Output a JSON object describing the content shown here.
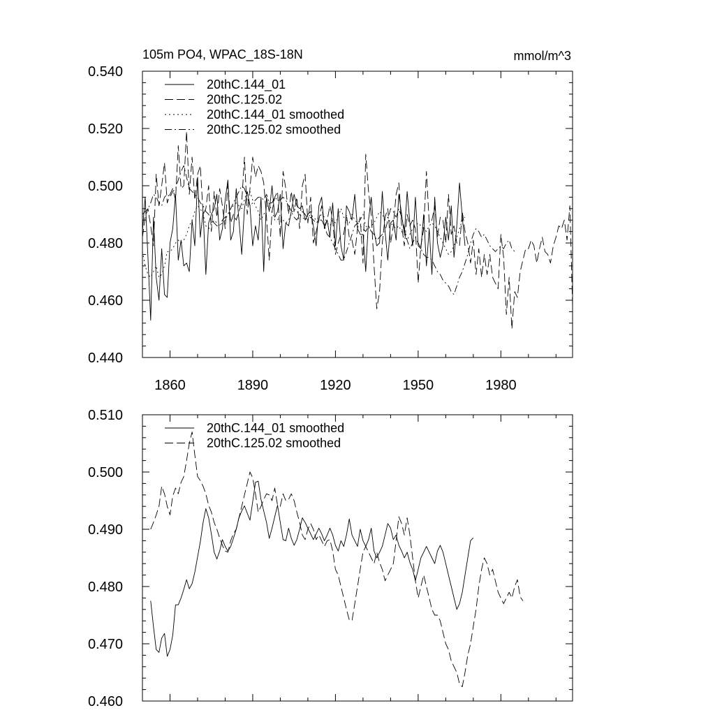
{
  "chart_data": [
    {
      "type": "line",
      "title": "105m PO4, WPAC_18S-18N",
      "units": "mmol/m^3",
      "xlabel": "",
      "ylabel": "",
      "xlim": [
        1850,
        2006
      ],
      "ylim": [
        0.44,
        0.54
      ],
      "x_ticks": [
        1860,
        1890,
        1920,
        1950,
        1980
      ],
      "x_tick_labels": [
        "1860",
        "1890",
        "1920",
        "1950",
        "1980"
      ],
      "y_ticks": [
        0.44,
        0.46,
        0.48,
        0.5,
        0.52,
        0.54
      ],
      "y_tick_labels": [
        "0.440",
        "0.460",
        "0.480",
        "0.500",
        "0.520",
        "0.540"
      ],
      "legend_position": "top-left",
      "series": [
        {
          "name": "20thC.144_01",
          "style": "solid",
          "x_start": 1850,
          "step": 1,
          "values": [
            0.484,
            0.496,
            0.475,
            0.453,
            0.489,
            0.468,
            0.46,
            0.478,
            0.462,
            0.461,
            0.48,
            0.485,
            0.497,
            0.474,
            0.481,
            0.472,
            0.473,
            0.47,
            0.488,
            0.479,
            0.503,
            0.482,
            0.491,
            0.469,
            0.487,
            0.49,
            0.492,
            0.497,
            0.481,
            0.485,
            0.495,
            0.502,
            0.481,
            0.484,
            0.499,
            0.488,
            0.476,
            0.492,
            0.498,
            0.493,
            0.479,
            0.486,
            0.481,
            0.496,
            0.47,
            0.496,
            0.491,
            0.5,
            0.489,
            0.491,
            0.497,
            0.478,
            0.487,
            0.486,
            0.491,
            0.497,
            0.493,
            0.492,
            0.493,
            0.488,
            0.49,
            0.491,
            0.486,
            0.479,
            0.493,
            0.496,
            0.485,
            0.488,
            0.482,
            0.494,
            0.479,
            0.492,
            0.479,
            0.474,
            0.493,
            0.491,
            0.488,
            0.497,
            0.485,
            0.483,
            0.483,
            0.47,
            0.488,
            0.496,
            0.484,
            0.479,
            0.48,
            0.498,
            0.484,
            0.474,
            0.487,
            0.488,
            0.481,
            0.497,
            0.49,
            0.483,
            0.498,
            0.487,
            0.479,
            0.496,
            0.479,
            0.478,
            0.49,
            0.472,
            0.485,
            0.469,
            0.496,
            0.48,
            0.475,
            0.479,
            0.489,
            0.481,
            0.493,
            0.475,
            0.486,
            0.501,
            0.489,
            0.479
          ]
        },
        {
          "name": "20thC.125.02",
          "style": "dashed",
          "x_start": 1850,
          "step": 1,
          "values": [
            0.482,
            0.489,
            0.492,
            0.486,
            0.479,
            0.504,
            0.493,
            0.5,
            0.508,
            0.494,
            0.497,
            0.499,
            0.495,
            0.514,
            0.499,
            0.5,
            0.519,
            0.497,
            0.51,
            0.495,
            0.504,
            0.507,
            0.49,
            0.492,
            0.5,
            0.484,
            0.498,
            0.489,
            0.499,
            0.493,
            0.485,
            0.501,
            0.487,
            0.49,
            0.488,
            0.491,
            0.494,
            0.51,
            0.49,
            0.499,
            0.51,
            0.503,
            0.507,
            0.505,
            0.501,
            0.489,
            0.474,
            0.491,
            0.496,
            0.498,
            0.482,
            0.505,
            0.499,
            0.49,
            0.498,
            0.491,
            0.496,
            0.485,
            0.5,
            0.504,
            0.487,
            0.496,
            0.48,
            0.484,
            0.488,
            0.493,
            0.486,
            0.488,
            0.493,
            0.488,
            0.476,
            0.48,
            0.483,
            0.483,
            0.49,
            0.482,
            0.481,
            0.476,
            0.485,
            0.489,
            0.473,
            0.511,
            0.498,
            0.49,
            0.472,
            0.457,
            0.463,
            0.48,
            0.489,
            0.492,
            0.48,
            0.486,
            0.497,
            0.501,
            0.486,
            0.479,
            0.49,
            0.486,
            0.488,
            0.485,
            0.466,
            0.479,
            0.485,
            0.505,
            0.487,
            0.488,
            0.493,
            0.482,
            0.489,
            0.488,
            0.48,
            0.497,
            0.483,
            0.486,
            0.48,
            0.479,
            0.491,
            0.484,
            0.48,
            0.473,
            0.481,
            0.469,
            0.478,
            0.468,
            0.476,
            0.469,
            0.476,
            0.468,
            0.466,
            0.464,
            0.483,
            0.475,
            0.455,
            0.468,
            0.45,
            0.463,
            0.461,
            0.47,
            0.474,
            0.478,
            0.478,
            0.481,
            0.479,
            0.473,
            0.478,
            0.482,
            0.477,
            0.476,
            0.473,
            0.479,
            0.482,
            0.486,
            0.485,
            0.488,
            0.481,
            0.493,
            0.458
          ]
        },
        {
          "name": "20thC.144_01 smoothed",
          "style": "dotted",
          "x_start": 1850,
          "step": 1,
          "values": [
            0.477,
            0.472,
            0.469,
            0.468,
            0.47,
            0.472,
            0.468,
            0.469,
            0.472,
            0.477,
            0.477,
            0.478,
            0.48,
            0.481,
            0.48,
            0.481,
            0.483,
            0.486,
            0.488,
            0.491,
            0.493,
            0.492,
            0.49,
            0.486,
            0.485,
            0.486,
            0.488,
            0.487,
            0.486,
            0.487,
            0.488,
            0.49,
            0.492,
            0.493,
            0.494,
            0.493,
            0.492,
            0.495,
            0.498,
            0.498,
            0.495,
            0.493,
            0.491,
            0.488,
            0.49,
            0.492,
            0.494,
            0.491,
            0.488,
            0.488,
            0.49,
            0.488,
            0.487,
            0.488,
            0.49,
            0.492,
            0.491,
            0.49,
            0.489,
            0.488,
            0.489,
            0.49,
            0.489,
            0.488,
            0.489,
            0.49,
            0.489,
            0.487,
            0.486,
            0.488,
            0.487,
            0.489,
            0.492,
            0.489,
            0.488,
            0.487,
            0.49,
            0.488,
            0.487,
            0.488,
            0.49,
            0.486,
            0.485,
            0.486,
            0.487,
            0.489,
            0.491,
            0.49,
            0.488,
            0.489,
            0.487,
            0.486,
            0.485,
            0.486,
            0.484,
            0.483,
            0.481,
            0.483,
            0.485,
            0.486,
            0.487,
            0.486,
            0.485,
            0.484,
            0.486,
            0.487,
            0.486,
            0.484,
            0.482,
            0.48,
            0.478,
            0.476,
            0.477,
            0.479,
            0.482,
            0.485,
            0.488,
            0.489
          ]
        },
        {
          "name": "20thC.125.02 smoothed",
          "style": "dashdot",
          "x_start": 1850,
          "step": 1,
          "values": [
            0.49,
            0.491,
            0.492,
            0.494,
            0.497,
            0.496,
            0.494,
            0.493,
            0.496,
            0.497,
            0.496,
            0.498,
            0.499,
            0.502,
            0.505,
            0.507,
            0.503,
            0.499,
            0.498,
            0.497,
            0.496,
            0.494,
            0.493,
            0.491,
            0.49,
            0.488,
            0.487,
            0.486,
            0.486,
            0.488,
            0.489,
            0.49,
            0.492,
            0.494,
            0.496,
            0.498,
            0.5,
            0.499,
            0.496,
            0.493,
            0.494,
            0.495,
            0.496,
            0.496,
            0.495,
            0.497,
            0.494,
            0.494,
            0.496,
            0.495,
            0.495,
            0.496,
            0.495,
            0.493,
            0.491,
            0.489,
            0.488,
            0.49,
            0.491,
            0.49,
            0.488,
            0.489,
            0.488,
            0.487,
            0.488,
            0.488,
            0.486,
            0.483,
            0.482,
            0.48,
            0.478,
            0.476,
            0.474,
            0.474,
            0.477,
            0.48,
            0.483,
            0.486,
            0.487,
            0.486,
            0.485,
            0.484,
            0.486,
            0.484,
            0.483,
            0.481,
            0.482,
            0.483,
            0.484,
            0.488,
            0.492,
            0.491,
            0.489,
            0.492,
            0.489,
            0.485,
            0.481,
            0.478,
            0.48,
            0.482,
            0.48,
            0.478,
            0.476,
            0.475,
            0.475,
            0.474,
            0.472,
            0.47,
            0.469,
            0.467,
            0.466,
            0.465,
            0.463,
            0.462,
            0.465,
            0.468,
            0.47,
            0.473,
            0.476,
            0.48,
            0.483,
            0.485,
            0.484,
            0.482,
            0.483,
            0.481,
            0.479,
            0.478,
            0.477,
            0.478,
            0.479,
            0.478,
            0.48,
            0.481,
            0.478,
            0.477
          ]
        }
      ]
    },
    {
      "type": "line",
      "title": "",
      "xlabel": "",
      "ylabel": "",
      "xlim": [
        1850,
        2006
      ],
      "ylim": [
        0.46,
        0.51
      ],
      "x_ticks": [
        1860,
        1890,
        1920,
        1950,
        1980
      ],
      "y_ticks": [
        0.46,
        0.47,
        0.48,
        0.49,
        0.5,
        0.51
      ],
      "y_tick_labels": [
        "0.460",
        "0.470",
        "0.480",
        "0.490",
        "0.500",
        "0.510"
      ],
      "legend_position": "top-left",
      "series": [
        {
          "name": "20thC.144_01 smoothed",
          "style": "solid",
          "x_start": 1853,
          "step": 1,
          "values": [
            0.4775,
            0.473,
            0.469,
            0.4685,
            0.471,
            0.4718,
            0.4678,
            0.469,
            0.4715,
            0.4768,
            0.4768,
            0.478,
            0.4795,
            0.4812,
            0.4796,
            0.4805,
            0.4825,
            0.4852,
            0.4878,
            0.4912,
            0.4936,
            0.492,
            0.4892,
            0.486,
            0.4848,
            0.4862,
            0.4882,
            0.487,
            0.4862,
            0.487,
            0.4884,
            0.49,
            0.492,
            0.4932,
            0.4941,
            0.4928,
            0.4916,
            0.4948,
            0.4982,
            0.4984,
            0.4952,
            0.4932,
            0.4912,
            0.4884,
            0.4902,
            0.4922,
            0.4942,
            0.4912,
            0.4882,
            0.488,
            0.4902,
            0.4884,
            0.4872,
            0.4882,
            0.49,
            0.492,
            0.4912,
            0.4902,
            0.4892,
            0.4882,
            0.4892,
            0.4902,
            0.4892,
            0.488,
            0.489,
            0.4902,
            0.489,
            0.4872,
            0.4862,
            0.488,
            0.487,
            0.489,
            0.4918,
            0.489,
            0.488,
            0.487,
            0.49,
            0.488,
            0.487,
            0.4882,
            0.4902,
            0.4862,
            0.485,
            0.486,
            0.487,
            0.489,
            0.491,
            0.4902,
            0.4882,
            0.489,
            0.4872,
            0.4862,
            0.485,
            0.486,
            0.4842,
            0.483,
            0.481,
            0.483,
            0.485,
            0.486,
            0.487,
            0.486,
            0.485,
            0.484,
            0.4862,
            0.4872,
            0.486,
            0.484,
            0.482,
            0.48,
            0.478,
            0.476,
            0.477,
            0.479,
            0.482,
            0.485,
            0.488,
            0.4885
          ]
        },
        {
          "name": "20thC.125.02 smoothed",
          "style": "dashed",
          "x_start": 1853,
          "step": 1,
          "values": [
            0.49,
            0.4912,
            0.4925,
            0.494,
            0.4975,
            0.4962,
            0.494,
            0.4925,
            0.4958,
            0.4972,
            0.4962,
            0.4982,
            0.4992,
            0.502,
            0.505,
            0.507,
            0.503,
            0.4992,
            0.4985,
            0.4975,
            0.4962,
            0.4942,
            0.493,
            0.4912,
            0.49,
            0.4885,
            0.4872,
            0.4862,
            0.486,
            0.488,
            0.4892,
            0.49,
            0.492,
            0.494,
            0.496,
            0.498,
            0.5,
            0.499,
            0.4962,
            0.493,
            0.494,
            0.4952,
            0.4962,
            0.496,
            0.495,
            0.4972,
            0.4942,
            0.494,
            0.4962,
            0.495,
            0.4952,
            0.4962,
            0.495,
            0.493,
            0.4912,
            0.489,
            0.4882,
            0.49,
            0.491,
            0.49,
            0.4882,
            0.489,
            0.488,
            0.487,
            0.488,
            0.4882,
            0.4862,
            0.483,
            0.482,
            0.48,
            0.478,
            0.476,
            0.4742,
            0.474,
            0.477,
            0.48,
            0.483,
            0.486,
            0.487,
            0.486,
            0.485,
            0.484,
            0.486,
            0.4842,
            0.483,
            0.481,
            0.482,
            0.483,
            0.484,
            0.488,
            0.4922,
            0.491,
            0.489,
            0.492,
            0.489,
            0.485,
            0.481,
            0.478,
            0.48,
            0.482,
            0.48,
            0.478,
            0.476,
            0.475,
            0.475,
            0.474,
            0.472,
            0.47,
            0.469,
            0.467,
            0.466,
            0.465,
            0.463,
            0.4625,
            0.465,
            0.468,
            0.47,
            0.473,
            0.476,
            0.48,
            0.483,
            0.485,
            0.484,
            0.482,
            0.483,
            0.481,
            0.479,
            0.478,
            0.477,
            0.478,
            0.479,
            0.478,
            0.48,
            0.4812,
            0.4782,
            0.4775
          ]
        }
      ]
    }
  ]
}
